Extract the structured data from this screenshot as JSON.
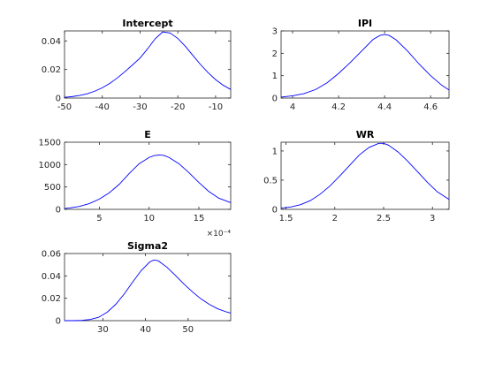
{
  "figure": {
    "background": "#ffffff",
    "line_color": "#0000ff",
    "axis_color": "#262626"
  },
  "chart_data": [
    {
      "type": "line",
      "title": "Intercept",
      "xlim": [
        -50,
        -6
      ],
      "ylim": [
        0,
        0.047
      ],
      "xticks": [
        -50,
        -40,
        -30,
        -20,
        -10
      ],
      "xtick_labels": [
        "-50",
        "-40",
        "-30",
        "-20",
        "-10"
      ],
      "yticks": [
        0,
        0.02,
        0.04
      ],
      "ytick_labels": [
        "0",
        "0.02",
        "0.04"
      ],
      "x": [
        -50,
        -48,
        -46,
        -44,
        -42,
        -40,
        -38,
        -36,
        -34,
        -32,
        -30,
        -28,
        -26,
        -24,
        -22,
        -20,
        -18,
        -16,
        -14,
        -12,
        -10,
        -8,
        -6
      ],
      "y": [
        0.0005,
        0.001,
        0.0018,
        0.003,
        0.0048,
        0.0072,
        0.0103,
        0.0141,
        0.0185,
        0.0232,
        0.028,
        0.0345,
        0.0415,
        0.0463,
        0.0455,
        0.0417,
        0.0362,
        0.0298,
        0.0235,
        0.0178,
        0.0129,
        0.009,
        0.006
      ],
      "grid": false
    },
    {
      "type": "line",
      "title": "IPI",
      "xlim": [
        3.95,
        4.68
      ],
      "ylim": [
        0,
        3
      ],
      "xticks": [
        4,
        4.2,
        4.4,
        4.6
      ],
      "xtick_labels": [
        "4",
        "4.2",
        "4.4",
        "4.6"
      ],
      "yticks": [
        0,
        1,
        2,
        3
      ],
      "ytick_labels": [
        "0",
        "1",
        "2",
        "3"
      ],
      "x": [
        3.95,
        4.0,
        4.05,
        4.1,
        4.15,
        4.2,
        4.25,
        4.3,
        4.35,
        4.38,
        4.4,
        4.42,
        4.45,
        4.5,
        4.55,
        4.6,
        4.65,
        4.68
      ],
      "y": [
        0.04,
        0.1,
        0.2,
        0.38,
        0.68,
        1.1,
        1.58,
        2.1,
        2.62,
        2.8,
        2.84,
        2.8,
        2.6,
        2.1,
        1.52,
        1.0,
        0.56,
        0.36
      ],
      "grid": false
    },
    {
      "type": "line",
      "title": "E",
      "xlim": [
        0.00015,
        0.00182
      ],
      "ylim": [
        0,
        1500
      ],
      "xticks": [
        0.0005,
        0.001,
        0.0015
      ],
      "xtick_labels": [
        "5",
        "10",
        "15"
      ],
      "x_exponent_label": "×10⁻⁴",
      "yticks": [
        0,
        500,
        1000,
        1500
      ],
      "ytick_labels": [
        "0",
        "500",
        "1000",
        "1500"
      ],
      "x": [
        0.00015,
        0.0002,
        0.0003,
        0.0004,
        0.0005,
        0.0006,
        0.0007,
        0.0008,
        0.0009,
        0.001,
        0.00105,
        0.0011,
        0.00115,
        0.0012,
        0.0013,
        0.0014,
        0.0015,
        0.0016,
        0.0017,
        0.00182
      ],
      "y": [
        18,
        30,
        65,
        130,
        230,
        370,
        560,
        800,
        1020,
        1160,
        1200,
        1215,
        1205,
        1160,
        1020,
        820,
        600,
        400,
        250,
        150
      ],
      "grid": false
    },
    {
      "type": "line",
      "title": "WR",
      "xlim": [
        1.45,
        3.17
      ],
      "ylim": [
        0,
        1.15
      ],
      "xticks": [
        1.5,
        2,
        2.5,
        3
      ],
      "xtick_labels": [
        "1.5",
        "2",
        "2.5",
        "3"
      ],
      "yticks": [
        0,
        0.5,
        1
      ],
      "ytick_labels": [
        "0",
        "0.5",
        "1"
      ],
      "x": [
        1.45,
        1.55,
        1.65,
        1.75,
        1.85,
        1.95,
        2.05,
        2.15,
        2.25,
        2.35,
        2.45,
        2.5,
        2.55,
        2.65,
        2.75,
        2.85,
        2.95,
        3.05,
        3.17
      ],
      "y": [
        0.02,
        0.04,
        0.08,
        0.15,
        0.26,
        0.4,
        0.57,
        0.75,
        0.93,
        1.06,
        1.13,
        1.13,
        1.1,
        0.98,
        0.82,
        0.64,
        0.46,
        0.3,
        0.17
      ],
      "grid": false
    },
    {
      "type": "line",
      "title": "Sigma2",
      "xlim": [
        21,
        60
      ],
      "ylim": [
        0,
        0.06
      ],
      "xticks": [
        30,
        40,
        50
      ],
      "xtick_labels": [
        "30",
        "40",
        "50"
      ],
      "yticks": [
        0,
        0.02,
        0.04,
        0.06
      ],
      "ytick_labels": [
        "0",
        "0.02",
        "0.04",
        "0.06"
      ],
      "x": [
        21,
        23,
        25,
        27,
        29,
        31,
        33,
        35,
        37,
        39,
        41,
        42,
        43,
        45,
        47,
        49,
        51,
        53,
        55,
        57,
        59,
        60
      ],
      "y": [
        0,
        0,
        0.0002,
        0.001,
        0.003,
        0.0075,
        0.0145,
        0.0238,
        0.0345,
        0.0448,
        0.0525,
        0.0542,
        0.0535,
        0.0478,
        0.0405,
        0.0328,
        0.0258,
        0.0195,
        0.0145,
        0.0105,
        0.0078,
        0.0068
      ],
      "grid": false
    }
  ]
}
